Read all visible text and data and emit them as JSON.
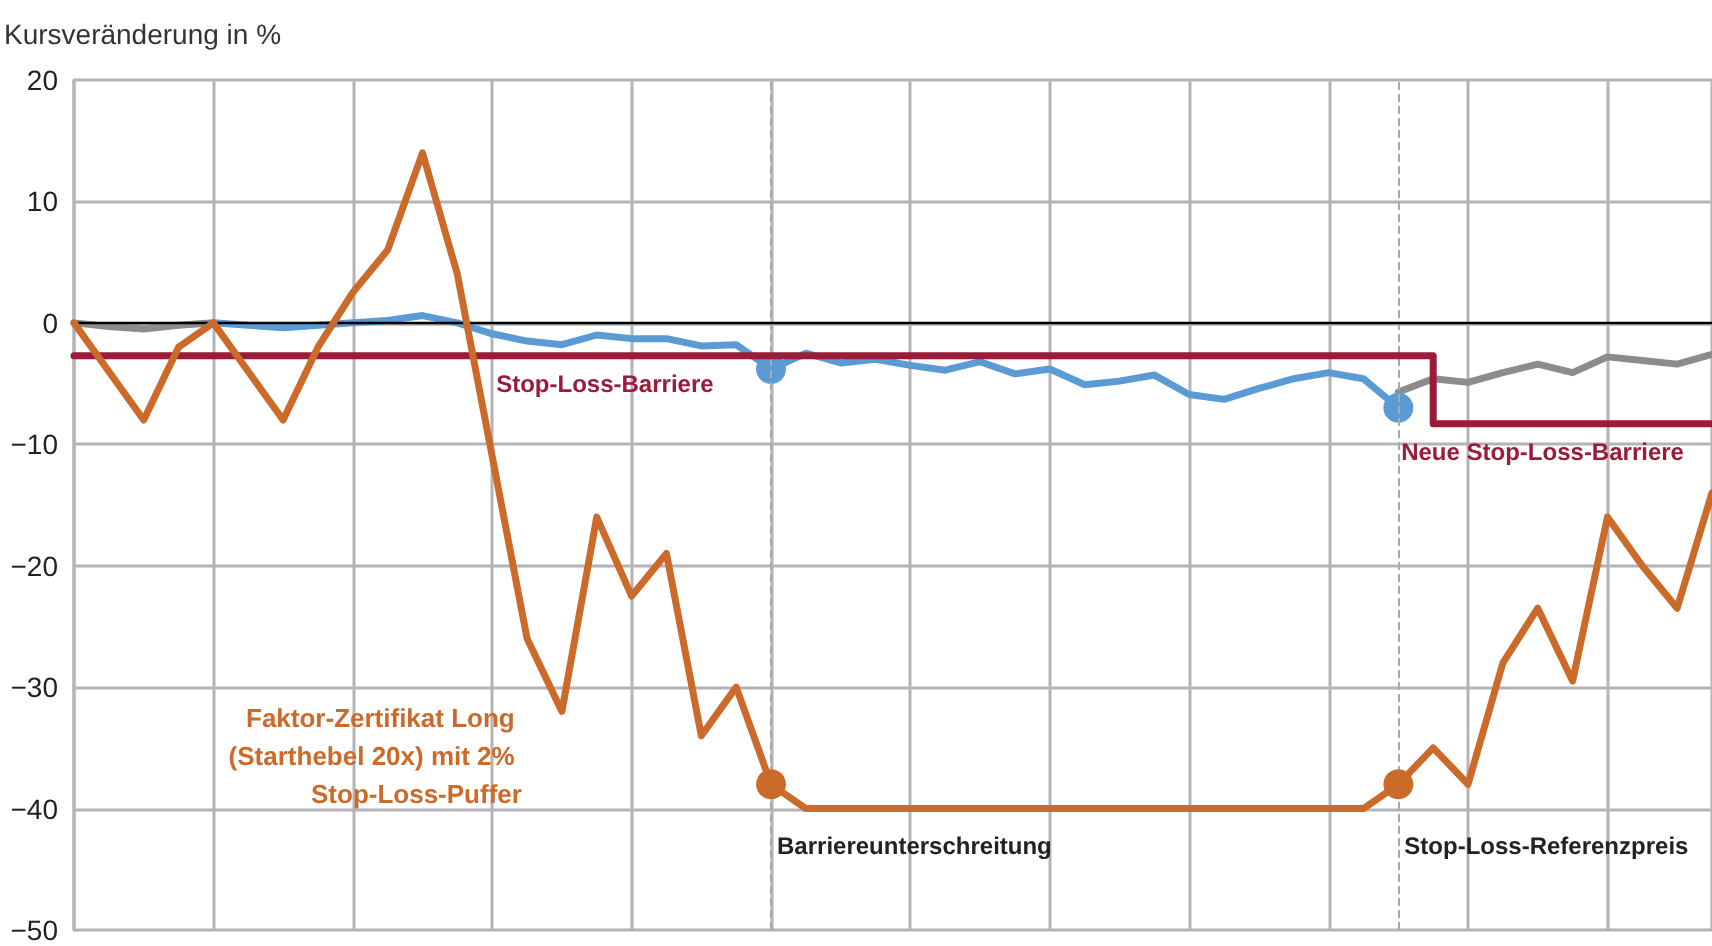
{
  "chart_data": {
    "type": "line",
    "ylabel": "Kursveränderung in %",
    "categories": [
      null,
      null,
      null,
      null,
      null,
      null,
      null,
      null,
      null,
      null,
      null,
      null,
      null,
      null,
      null,
      null,
      null,
      null,
      null,
      null,
      null,
      null,
      null,
      null,
      null,
      null,
      null,
      null,
      null,
      null,
      null,
      null,
      null,
      null,
      null,
      null,
      null,
      null,
      null,
      null,
      null,
      null,
      null,
      null,
      null,
      null,
      null,
      null
    ],
    "series": [
      {
        "color": "#8c8c8c",
        "values": [
          0,
          -0.3,
          -0.5,
          -0.2,
          0,
          null,
          null,
          null,
          null,
          null,
          null,
          null,
          null,
          null,
          null,
          null,
          null,
          null,
          null,
          null,
          null,
          null,
          null,
          null,
          null,
          null,
          null,
          null,
          null,
          null,
          null,
          null,
          null,
          null,
          null,
          null,
          null,
          null,
          -5.7,
          -4.6,
          -4.9,
          -4.1,
          -3.4,
          -4.1,
          -2.8,
          -3.1,
          -3.4,
          -2.6
        ]
      },
      {
        "color": "#5b9bd5",
        "values": [
          null,
          null,
          null,
          null,
          0,
          -0.2,
          -0.4,
          -0.2,
          0,
          0.2,
          0.6,
          0,
          -0.9,
          -1.5,
          -1.8,
          -1,
          -1.3,
          -1.3,
          -1.9,
          -1.8,
          -3.8,
          -2.5,
          -3.3,
          -3,
          -3.5,
          -3.9,
          -3.2,
          -4.2,
          -3.8,
          -5.1,
          -4.8,
          -4.3,
          -5.9,
          -6.3,
          -5.4,
          -4.6,
          -4.1,
          -4.6,
          -7,
          null,
          null,
          null,
          null,
          null,
          null,
          null,
          null,
          null
        ]
      },
      {
        "type": "step",
        "color": "#9b1b3a",
        "values": [
          -2.7,
          -2.7,
          -2.7,
          -2.7,
          -2.7,
          -2.7,
          -2.7,
          -2.7,
          -2.7,
          -2.7,
          -2.7,
          -2.7,
          -2.7,
          -2.7,
          -2.7,
          -2.7,
          -2.7,
          -2.7,
          -2.7,
          -2.7,
          -2.7,
          -2.7,
          -2.7,
          -2.7,
          -2.7,
          -2.7,
          -2.7,
          -2.7,
          -2.7,
          -2.7,
          -2.7,
          -2.7,
          -2.7,
          -2.7,
          -2.7,
          -2.7,
          -2.7,
          -2.7,
          -2.7,
          -8.3,
          -8.3,
          -8.3,
          -8.3,
          -8.3,
          -8.3,
          -8.3,
          -8.3,
          -8.3
        ]
      },
      {
        "name": "Faktor-Zertifikat Long (Starthebel 20x) mit 2% Stop-Loss-Puffer",
        "color": "#cc6a2a",
        "values": [
          0,
          -4,
          -8,
          -2,
          0,
          -4,
          -8,
          -2,
          2.5,
          6,
          14,
          4,
          -11,
          -26,
          -32,
          -16,
          -22.5,
          -19,
          -34,
          -30,
          -38,
          -40,
          -40,
          -40,
          -40,
          -40,
          -40,
          -40,
          -40,
          -40,
          -40,
          -40,
          -40,
          -40,
          -40,
          -40,
          -40,
          -40,
          -38,
          -35,
          -38,
          -28,
          -23.5,
          -29.5,
          -16,
          -20,
          -23.5,
          -14
        ]
      }
    ],
    "annotations": [
      {
        "text": "Stop-Loss-Barriere",
        "y": -2.7
      },
      {
        "text": "Neue Stop-Loss-Barriere",
        "y": -8.3
      },
      "Barriereunterschreitung",
      "Stop-Loss-Referenzpreis"
    ],
    "ylim": [
      -50,
      20
    ],
    "yticks": [
      {
        "value": -50,
        "label": "−50"
      },
      {
        "value": -40,
        "label": "−40"
      },
      {
        "value": -30,
        "label": "−30"
      },
      {
        "value": -20,
        "label": "−20"
      },
      {
        "value": -10,
        "label": "−10"
      },
      0,
      10,
      20
    ],
    "ref_lines": [
      {
        "axis": "y",
        "value": 0,
        "color": "#000000"
      }
    ],
    "grid": true,
    "line_style": "solid",
    "tick_labels": "y"
  }
}
